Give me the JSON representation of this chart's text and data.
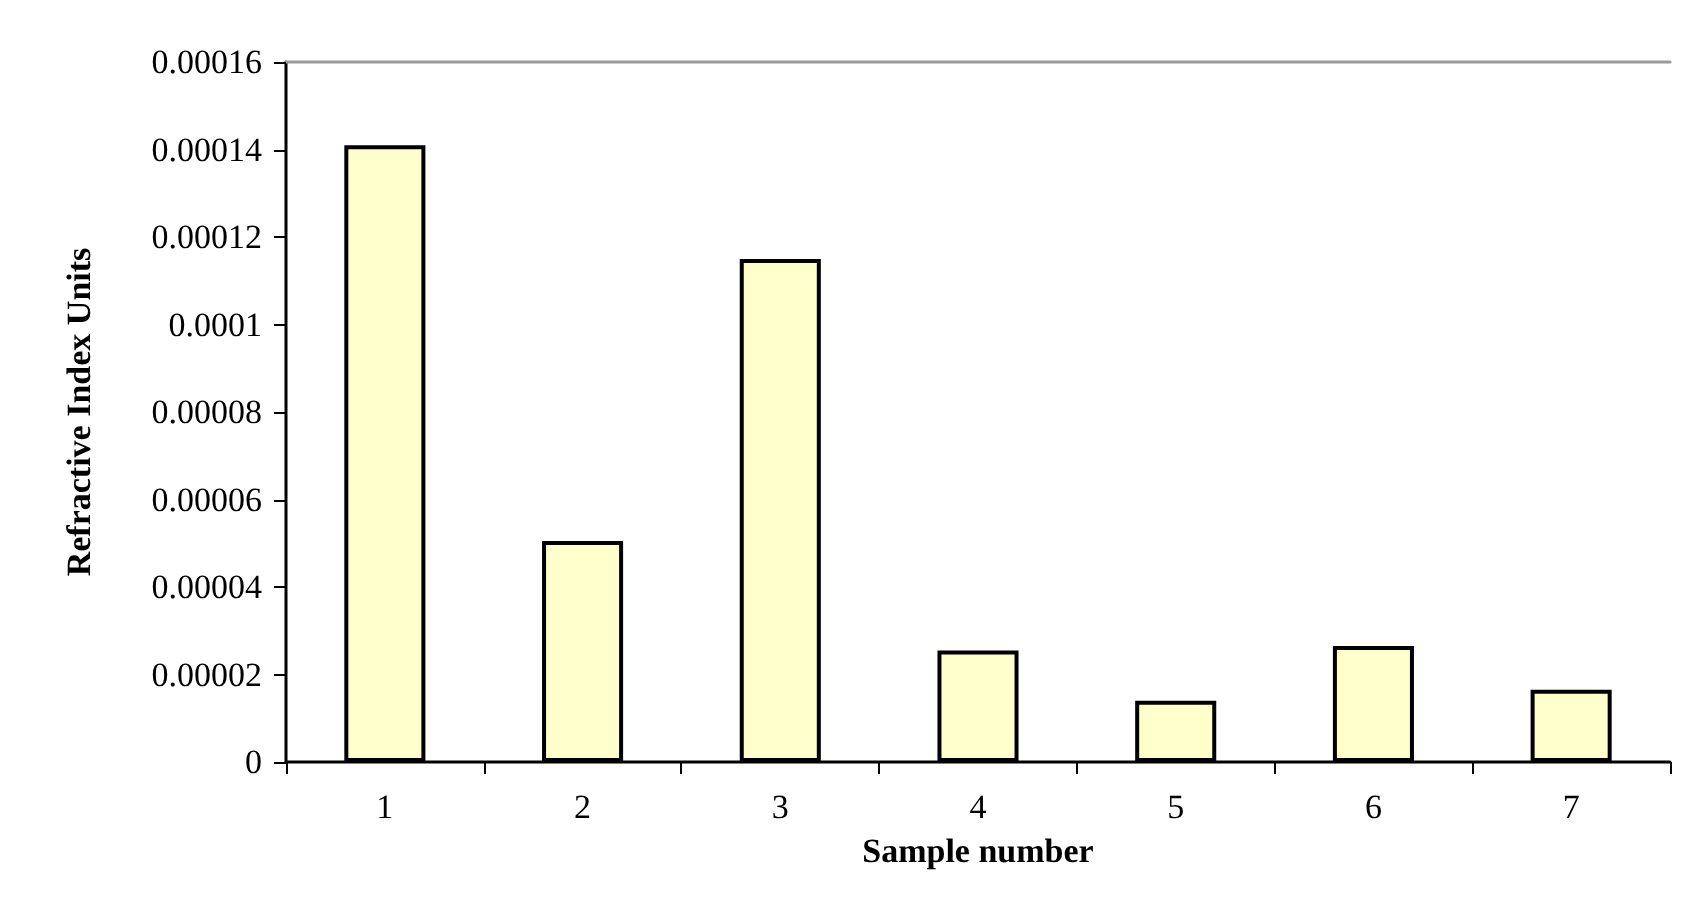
{
  "chart_data": {
    "type": "bar",
    "xlabel": "Sample number",
    "ylabel": "Refractive Index Units",
    "categories": [
      "1",
      "2",
      "3",
      "4",
      "5",
      "6",
      "7"
    ],
    "values": [
      0.000141,
      5.05e-05,
      0.000115,
      2.55e-05,
      1.4e-05,
      2.65e-05,
      1.65e-05
    ],
    "color": "#ffffcc",
    "ylim": [
      0,
      0.00016
    ],
    "yticks": [
      0,
      {
        "value": 2e-05,
        "label": "0.00002"
      },
      {
        "value": 4e-05,
        "label": "0.00004"
      },
      {
        "value": 6e-05,
        "label": "0.00006"
      },
      {
        "value": 8e-05,
        "label": "0.00008"
      },
      0.0001,
      0.00012,
      0.00014,
      0.00016
    ],
    "grid": false
  }
}
